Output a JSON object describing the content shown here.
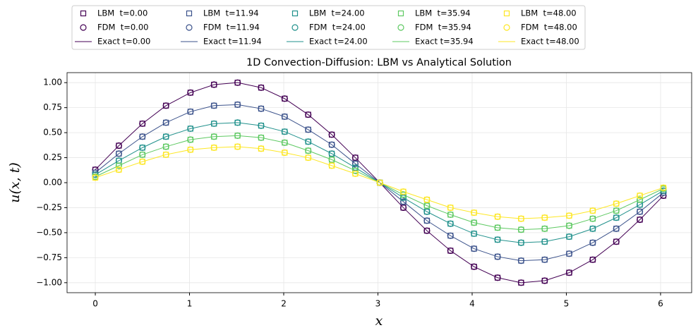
{
  "chart_data": {
    "type": "line",
    "title": "1D Convection-Diffusion: LBM vs Analytical Solution",
    "xlabel": "x",
    "ylabel": "u(x, t)",
    "x": [
      0.0,
      0.25,
      0.5,
      0.75,
      1.01,
      1.26,
      1.51,
      1.76,
      2.01,
      2.26,
      2.51,
      2.76,
      3.02,
      3.27,
      3.52,
      3.77,
      4.02,
      4.27,
      4.52,
      4.77,
      5.03,
      5.28,
      5.53,
      5.78,
      6.03
    ],
    "xlim": [
      -0.3,
      6.33
    ],
    "ylim": [
      -1.1,
      1.1
    ],
    "xticks": [
      0,
      1,
      2,
      3,
      4,
      5,
      6
    ],
    "yticks": [
      {
        "value": -1,
        "label": "−1.00"
      },
      {
        "value": -0.75,
        "label": "−0.75"
      },
      {
        "value": -0.5,
        "label": "−0.50"
      },
      {
        "value": -0.25,
        "label": "−0.25"
      },
      {
        "value": 0,
        "label": "0.00"
      },
      {
        "value": 0.25,
        "label": "0.25"
      },
      {
        "value": 0.5,
        "label": "0.50"
      },
      {
        "value": 0.75,
        "label": "0.75"
      },
      {
        "value": 1,
        "label": "1.00"
      }
    ],
    "grid": true,
    "legend": "top",
    "series": [
      {
        "name": "LBM  t=0.00",
        "color": "#440154",
        "style": "square",
        "values": [
          0.13,
          0.37,
          0.59,
          0.77,
          0.9,
          0.98,
          1.0,
          0.95,
          0.84,
          0.68,
          0.48,
          0.25,
          0,
          -0.25,
          -0.48,
          -0.68,
          -0.84,
          -0.95,
          -1.0,
          -0.98,
          -0.9,
          -0.77,
          -0.59,
          -0.37,
          -0.13
        ]
      },
      {
        "name": "FDM  t=0.00",
        "color": "#440154",
        "style": "circle",
        "values": [
          0.13,
          0.37,
          0.59,
          0.77,
          0.9,
          0.98,
          1.0,
          0.95,
          0.84,
          0.68,
          0.48,
          0.25,
          0,
          -0.25,
          -0.48,
          -0.68,
          -0.84,
          -0.95,
          -1.0,
          -0.98,
          -0.9,
          -0.77,
          -0.59,
          -0.37,
          -0.13
        ]
      },
      {
        "name": "Exact t=0.00",
        "color": "#440154",
        "style": "line",
        "values": [
          0.13,
          0.37,
          0.59,
          0.77,
          0.9,
          0.98,
          1.0,
          0.95,
          0.84,
          0.68,
          0.48,
          0.25,
          0,
          -0.25,
          -0.48,
          -0.68,
          -0.84,
          -0.95,
          -1.0,
          -0.98,
          -0.9,
          -0.77,
          -0.59,
          -0.37,
          -0.13
        ]
      },
      {
        "name": "LBM  t=11.94",
        "color": "#3b528b",
        "style": "square",
        "values": [
          0.1,
          0.29,
          0.46,
          0.6,
          0.71,
          0.77,
          0.78,
          0.74,
          0.66,
          0.53,
          0.38,
          0.19,
          0,
          -0.19,
          -0.38,
          -0.53,
          -0.66,
          -0.74,
          -0.78,
          -0.77,
          -0.71,
          -0.6,
          -0.46,
          -0.29,
          -0.1
        ]
      },
      {
        "name": "FDM  t=11.94",
        "color": "#3b528b",
        "style": "circle",
        "values": [
          0.1,
          0.29,
          0.46,
          0.6,
          0.71,
          0.77,
          0.78,
          0.74,
          0.66,
          0.53,
          0.38,
          0.19,
          0,
          -0.19,
          -0.38,
          -0.53,
          -0.66,
          -0.74,
          -0.78,
          -0.77,
          -0.71,
          -0.6,
          -0.46,
          -0.29,
          -0.1
        ]
      },
      {
        "name": "Exact t=11.94",
        "color": "#3b528b",
        "style": "line",
        "values": [
          0.1,
          0.29,
          0.46,
          0.6,
          0.71,
          0.77,
          0.78,
          0.74,
          0.66,
          0.53,
          0.38,
          0.19,
          0,
          -0.19,
          -0.38,
          -0.53,
          -0.66,
          -0.74,
          -0.78,
          -0.77,
          -0.71,
          -0.6,
          -0.46,
          -0.29,
          -0.1
        ]
      },
      {
        "name": "LBM  t=24.00",
        "color": "#21918c",
        "style": "square",
        "values": [
          0.08,
          0.22,
          0.35,
          0.46,
          0.54,
          0.59,
          0.6,
          0.57,
          0.51,
          0.41,
          0.29,
          0.15,
          0,
          -0.15,
          -0.29,
          -0.41,
          -0.51,
          -0.57,
          -0.6,
          -0.59,
          -0.54,
          -0.46,
          -0.35,
          -0.22,
          -0.08
        ]
      },
      {
        "name": "FDM  t=24.00",
        "color": "#21918c",
        "style": "circle",
        "values": [
          0.08,
          0.22,
          0.35,
          0.46,
          0.54,
          0.59,
          0.6,
          0.57,
          0.51,
          0.41,
          0.29,
          0.15,
          0,
          -0.15,
          -0.29,
          -0.41,
          -0.51,
          -0.57,
          -0.6,
          -0.59,
          -0.54,
          -0.46,
          -0.35,
          -0.22,
          -0.08
        ]
      },
      {
        "name": "Exact t=24.00",
        "color": "#21918c",
        "style": "line",
        "values": [
          0.08,
          0.22,
          0.35,
          0.46,
          0.54,
          0.59,
          0.6,
          0.57,
          0.51,
          0.41,
          0.29,
          0.15,
          0,
          -0.15,
          -0.29,
          -0.41,
          -0.51,
          -0.57,
          -0.6,
          -0.59,
          -0.54,
          -0.46,
          -0.35,
          -0.22,
          -0.08
        ]
      },
      {
        "name": "LBM  t=35.94",
        "color": "#5ec962",
        "style": "square",
        "values": [
          0.06,
          0.17,
          0.28,
          0.36,
          0.43,
          0.46,
          0.47,
          0.45,
          0.4,
          0.32,
          0.23,
          0.12,
          0,
          -0.12,
          -0.23,
          -0.32,
          -0.4,
          -0.45,
          -0.47,
          -0.46,
          -0.43,
          -0.36,
          -0.28,
          -0.17,
          -0.06
        ]
      },
      {
        "name": "FDM  t=35.94",
        "color": "#5ec962",
        "style": "circle",
        "values": [
          0.06,
          0.17,
          0.28,
          0.36,
          0.43,
          0.46,
          0.47,
          0.45,
          0.4,
          0.32,
          0.23,
          0.12,
          0,
          -0.12,
          -0.23,
          -0.32,
          -0.4,
          -0.45,
          -0.47,
          -0.46,
          -0.43,
          -0.36,
          -0.28,
          -0.17,
          -0.06
        ]
      },
      {
        "name": "Exact t=35.94",
        "color": "#5ec962",
        "style": "line",
        "values": [
          0.06,
          0.17,
          0.28,
          0.36,
          0.43,
          0.46,
          0.47,
          0.45,
          0.4,
          0.32,
          0.23,
          0.12,
          0,
          -0.12,
          -0.23,
          -0.32,
          -0.4,
          -0.45,
          -0.47,
          -0.46,
          -0.43,
          -0.36,
          -0.28,
          -0.17,
          -0.06
        ]
      },
      {
        "name": "LBM  t=48.00",
        "color": "#fde725",
        "style": "square",
        "values": [
          0.05,
          0.13,
          0.21,
          0.28,
          0.33,
          0.35,
          0.36,
          0.34,
          0.3,
          0.25,
          0.17,
          0.09,
          0,
          -0.09,
          -0.17,
          -0.25,
          -0.3,
          -0.34,
          -0.36,
          -0.35,
          -0.33,
          -0.28,
          -0.21,
          -0.13,
          -0.05
        ]
      },
      {
        "name": "FDM  t=48.00",
        "color": "#fde725",
        "style": "circle",
        "values": [
          0.05,
          0.13,
          0.21,
          0.28,
          0.33,
          0.35,
          0.36,
          0.34,
          0.3,
          0.25,
          0.17,
          0.09,
          0,
          -0.09,
          -0.17,
          -0.25,
          -0.3,
          -0.34,
          -0.36,
          -0.35,
          -0.33,
          -0.28,
          -0.21,
          -0.13,
          -0.05
        ]
      },
      {
        "name": "Exact t=48.00",
        "color": "#fde725",
        "style": "line",
        "values": [
          0.05,
          0.13,
          0.21,
          0.28,
          0.33,
          0.35,
          0.36,
          0.34,
          0.3,
          0.25,
          0.17,
          0.09,
          0,
          -0.09,
          -0.17,
          -0.25,
          -0.3,
          -0.34,
          -0.36,
          -0.35,
          -0.33,
          -0.28,
          -0.21,
          -0.13,
          -0.05
        ]
      }
    ]
  }
}
